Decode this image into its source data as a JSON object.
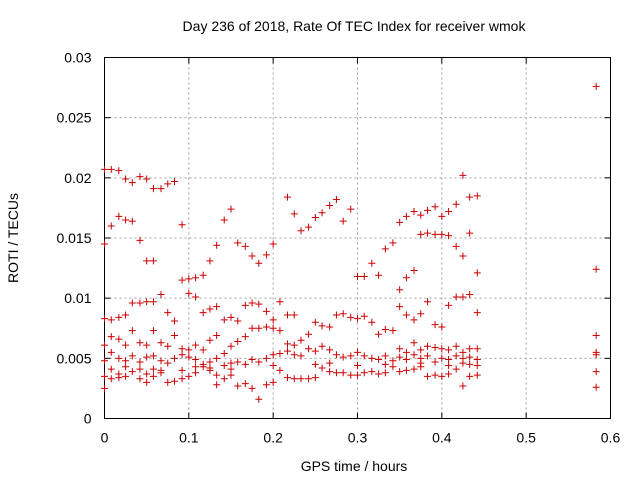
{
  "chart_data": {
    "type": "scatter",
    "title": "Day 236 of 2018, Rate Of TEC Index for receiver wmok",
    "xlabel": "GPS time / hours",
    "ylabel": "ROTI / TECUs",
    "xlim": [
      0,
      0.6
    ],
    "ylim": [
      0,
      0.03
    ],
    "xticks": [
      "0",
      "0.1",
      "0.2",
      "0.3",
      "0.4",
      "0.5",
      "0.6"
    ],
    "yticks": [
      "0",
      "0.005",
      "0.01",
      "0.015",
      "0.02",
      "0.025",
      "0.03"
    ],
    "grid": true,
    "marker": "plus",
    "color": "#cc0000",
    "series": [
      {
        "points": [
          [
            0.0,
            0.0207
          ],
          [
            0.008,
            0.0207
          ],
          [
            0.017,
            0.0206
          ],
          [
            0.025,
            0.0199
          ],
          [
            0.033,
            0.0196
          ],
          [
            0.042,
            0.0201
          ],
          [
            0.05,
            0.0199
          ],
          [
            0.058,
            0.0191
          ],
          [
            0.067,
            0.0191
          ],
          [
            0.075,
            0.0195
          ],
          [
            0.083,
            0.0197
          ],
          [
            0.0,
            0.0145
          ],
          [
            0.008,
            0.016
          ],
          [
            0.017,
            0.0168
          ],
          [
            0.025,
            0.0165
          ],
          [
            0.033,
            0.0164
          ],
          [
            0.042,
            0.0148
          ],
          [
            0.05,
            0.0131
          ],
          [
            0.058,
            0.0131
          ],
          [
            0.092,
            0.0161
          ],
          [
            0.092,
            0.0115
          ],
          [
            0.1,
            0.0116
          ],
          [
            0.108,
            0.0117
          ],
          [
            0.117,
            0.0119
          ],
          [
            0.125,
            0.0131
          ],
          [
            0.133,
            0.0144
          ],
          [
            0.142,
            0.0165
          ],
          [
            0.15,
            0.0174
          ],
          [
            0.158,
            0.0146
          ],
          [
            0.167,
            0.0143
          ],
          [
            0.175,
            0.0135
          ],
          [
            0.183,
            0.0129
          ],
          [
            0.192,
            0.0136
          ],
          [
            0.2,
            0.0145
          ],
          [
            0.217,
            0.0184
          ],
          [
            0.225,
            0.017
          ],
          [
            0.233,
            0.0156
          ],
          [
            0.242,
            0.0159
          ],
          [
            0.25,
            0.0167
          ],
          [
            0.258,
            0.0171
          ],
          [
            0.267,
            0.0177
          ],
          [
            0.275,
            0.0182
          ],
          [
            0.283,
            0.0164
          ],
          [
            0.292,
            0.0174
          ],
          [
            0.3,
            0.0118
          ],
          [
            0.308,
            0.0118
          ],
          [
            0.317,
            0.0129
          ],
          [
            0.325,
            0.0119
          ],
          [
            0.333,
            0.0141
          ],
          [
            0.342,
            0.0146
          ],
          [
            0.35,
            0.0163
          ],
          [
            0.358,
            0.0168
          ],
          [
            0.367,
            0.0172
          ],
          [
            0.375,
            0.0169
          ],
          [
            0.383,
            0.0173
          ],
          [
            0.392,
            0.0176
          ],
          [
            0.4,
            0.0168
          ],
          [
            0.408,
            0.0172
          ],
          [
            0.417,
            0.0178
          ],
          [
            0.425,
            0.0202
          ],
          [
            0.433,
            0.0184
          ],
          [
            0.442,
            0.0185
          ],
          [
            0.35,
            0.0107
          ],
          [
            0.358,
            0.0117
          ],
          [
            0.367,
            0.0123
          ],
          [
            0.375,
            0.0153
          ],
          [
            0.383,
            0.0154
          ],
          [
            0.392,
            0.0153
          ],
          [
            0.4,
            0.0153
          ],
          [
            0.408,
            0.0152
          ],
          [
            0.417,
            0.0143
          ],
          [
            0.425,
            0.0135
          ],
          [
            0.433,
            0.0154
          ],
          [
            0.442,
            0.0121
          ],
          [
            0.0,
            0.0083
          ],
          [
            0.008,
            0.0082
          ],
          [
            0.017,
            0.0084
          ],
          [
            0.025,
            0.0086
          ],
          [
            0.033,
            0.0096
          ],
          [
            0.042,
            0.0096
          ],
          [
            0.05,
            0.0097
          ],
          [
            0.058,
            0.0097
          ],
          [
            0.067,
            0.0103
          ],
          [
            0.075,
            0.0088
          ],
          [
            0.083,
            0.0081
          ],
          [
            0.1,
            0.0104
          ],
          [
            0.108,
            0.0101
          ],
          [
            0.117,
            0.0088
          ],
          [
            0.125,
            0.0091
          ],
          [
            0.133,
            0.0093
          ],
          [
            0.142,
            0.0082
          ],
          [
            0.15,
            0.0084
          ],
          [
            0.158,
            0.0081
          ],
          [
            0.167,
            0.0094
          ],
          [
            0.175,
            0.0096
          ],
          [
            0.183,
            0.0095
          ],
          [
            0.192,
            0.0089
          ],
          [
            0.2,
            0.0082
          ],
          [
            0.208,
            0.0097
          ],
          [
            0.217,
            0.0086
          ],
          [
            0.225,
            0.0086
          ],
          [
            0.35,
            0.0093
          ],
          [
            0.358,
            0.0086
          ],
          [
            0.367,
            0.0082
          ],
          [
            0.375,
            0.0087
          ],
          [
            0.383,
            0.0097
          ],
          [
            0.392,
            0.0078
          ],
          [
            0.4,
            0.0076
          ],
          [
            0.408,
            0.0094
          ],
          [
            0.417,
            0.0101
          ],
          [
            0.425,
            0.0101
          ],
          [
            0.433,
            0.0103
          ],
          [
            0.442,
            0.0088
          ],
          [
            0.0,
            0.0061
          ],
          [
            0.008,
            0.0068
          ],
          [
            0.017,
            0.0066
          ],
          [
            0.025,
            0.0061
          ],
          [
            0.033,
            0.0073
          ],
          [
            0.042,
            0.0063
          ],
          [
            0.05,
            0.0061
          ],
          [
            0.058,
            0.0073
          ],
          [
            0.067,
            0.0063
          ],
          [
            0.075,
            0.006
          ],
          [
            0.083,
            0.0069
          ],
          [
            0.092,
            0.0058
          ],
          [
            0.1,
            0.0057
          ],
          [
            0.108,
            0.0061
          ],
          [
            0.117,
            0.0057
          ],
          [
            0.125,
            0.0065
          ],
          [
            0.133,
            0.0069
          ],
          [
            0.142,
            0.0054
          ],
          [
            0.15,
            0.006
          ],
          [
            0.158,
            0.0064
          ],
          [
            0.167,
            0.0068
          ],
          [
            0.175,
            0.0075
          ],
          [
            0.183,
            0.0075
          ],
          [
            0.192,
            0.0076
          ],
          [
            0.2,
            0.0075
          ],
          [
            0.208,
            0.0073
          ],
          [
            0.217,
            0.0062
          ],
          [
            0.225,
            0.0061
          ],
          [
            0.233,
            0.0065
          ],
          [
            0.242,
            0.007
          ],
          [
            0.25,
            0.008
          ],
          [
            0.258,
            0.0077
          ],
          [
            0.267,
            0.0076
          ],
          [
            0.275,
            0.0086
          ],
          [
            0.283,
            0.0087
          ],
          [
            0.292,
            0.0084
          ],
          [
            0.3,
            0.0083
          ],
          [
            0.308,
            0.0085
          ],
          [
            0.317,
            0.008
          ],
          [
            0.325,
            0.007
          ],
          [
            0.333,
            0.0074
          ],
          [
            0.342,
            0.0073
          ],
          [
            0.35,
            0.0058
          ],
          [
            0.358,
            0.0055
          ],
          [
            0.367,
            0.0063
          ],
          [
            0.375,
            0.0057
          ],
          [
            0.383,
            0.006
          ],
          [
            0.392,
            0.0059
          ],
          [
            0.4,
            0.0058
          ],
          [
            0.408,
            0.0057
          ],
          [
            0.417,
            0.006
          ],
          [
            0.425,
            0.0055
          ],
          [
            0.433,
            0.0058
          ],
          [
            0.442,
            0.0058
          ],
          [
            0.0,
            0.0048
          ],
          [
            0.008,
            0.0055
          ],
          [
            0.017,
            0.005
          ],
          [
            0.025,
            0.0048
          ],
          [
            0.033,
            0.0052
          ],
          [
            0.042,
            0.0047
          ],
          [
            0.05,
            0.0051
          ],
          [
            0.058,
            0.0052
          ],
          [
            0.067,
            0.0048
          ],
          [
            0.075,
            0.0046
          ],
          [
            0.083,
            0.005
          ],
          [
            0.092,
            0.0053
          ],
          [
            0.1,
            0.0051
          ],
          [
            0.108,
            0.0049
          ],
          [
            0.117,
            0.0045
          ],
          [
            0.125,
            0.0047
          ],
          [
            0.133,
            0.005
          ],
          [
            0.142,
            0.0044
          ],
          [
            0.15,
            0.0046
          ],
          [
            0.158,
            0.0047
          ],
          [
            0.167,
            0.0045
          ],
          [
            0.175,
            0.0049
          ],
          [
            0.183,
            0.0047
          ],
          [
            0.192,
            0.005
          ],
          [
            0.2,
            0.0053
          ],
          [
            0.208,
            0.0054
          ],
          [
            0.217,
            0.0056
          ],
          [
            0.225,
            0.0053
          ],
          [
            0.233,
            0.0052
          ],
          [
            0.242,
            0.0058
          ],
          [
            0.25,
            0.0056
          ],
          [
            0.258,
            0.006
          ],
          [
            0.267,
            0.0057
          ],
          [
            0.275,
            0.0053
          ],
          [
            0.283,
            0.0051
          ],
          [
            0.292,
            0.0052
          ],
          [
            0.3,
            0.0055
          ],
          [
            0.308,
            0.0052
          ],
          [
            0.317,
            0.005
          ],
          [
            0.325,
            0.0049
          ],
          [
            0.333,
            0.0052
          ],
          [
            0.342,
            0.0048
          ],
          [
            0.35,
            0.0051
          ],
          [
            0.358,
            0.0049
          ],
          [
            0.367,
            0.0053
          ],
          [
            0.375,
            0.005
          ],
          [
            0.383,
            0.0052
          ],
          [
            0.392,
            0.0047
          ],
          [
            0.4,
            0.005
          ],
          [
            0.408,
            0.0049
          ],
          [
            0.417,
            0.0052
          ],
          [
            0.425,
            0.005
          ],
          [
            0.433,
            0.0051
          ],
          [
            0.442,
            0.0049
          ],
          [
            0.0,
            0.0035
          ],
          [
            0.008,
            0.0033
          ],
          [
            0.017,
            0.0037
          ],
          [
            0.025,
            0.0035
          ],
          [
            0.033,
            0.0039
          ],
          [
            0.042,
            0.0033
          ],
          [
            0.05,
            0.0037
          ],
          [
            0.058,
            0.0035
          ],
          [
            0.067,
            0.0038
          ],
          [
            0.075,
            0.003
          ],
          [
            0.083,
            0.0031
          ],
          [
            0.092,
            0.0033
          ],
          [
            0.1,
            0.0035
          ],
          [
            0.108,
            0.0038
          ],
          [
            0.117,
            0.0043
          ],
          [
            0.125,
            0.004
          ],
          [
            0.133,
            0.0036
          ],
          [
            0.142,
            0.0033
          ],
          [
            0.15,
            0.0036
          ],
          [
            0.158,
            0.0027
          ],
          [
            0.167,
            0.0029
          ],
          [
            0.175,
            0.0025
          ],
          [
            0.183,
            0.0016
          ],
          [
            0.192,
            0.0028
          ],
          [
            0.2,
            0.003
          ],
          [
            0.208,
            0.004
          ],
          [
            0.217,
            0.0034
          ],
          [
            0.225,
            0.0033
          ],
          [
            0.233,
            0.0033
          ],
          [
            0.242,
            0.0033
          ],
          [
            0.25,
            0.0034
          ],
          [
            0.258,
            0.0042
          ],
          [
            0.267,
            0.0039
          ],
          [
            0.275,
            0.0038
          ],
          [
            0.283,
            0.0038
          ],
          [
            0.292,
            0.0036
          ],
          [
            0.3,
            0.0036
          ],
          [
            0.308,
            0.0038
          ],
          [
            0.317,
            0.0039
          ],
          [
            0.325,
            0.0037
          ],
          [
            0.333,
            0.0038
          ],
          [
            0.342,
            0.0043
          ],
          [
            0.35,
            0.0039
          ],
          [
            0.358,
            0.004
          ],
          [
            0.367,
            0.0041
          ],
          [
            0.375,
            0.0043
          ],
          [
            0.383,
            0.0035
          ],
          [
            0.392,
            0.0036
          ],
          [
            0.4,
            0.0035
          ],
          [
            0.408,
            0.0037
          ],
          [
            0.417,
            0.0041
          ],
          [
            0.425,
            0.0027
          ],
          [
            0.433,
            0.0035
          ],
          [
            0.442,
            0.0036
          ],
          [
            0.0,
            0.0025
          ],
          [
            0.008,
            0.0041
          ],
          [
            0.017,
            0.0034
          ],
          [
            0.025,
            0.0043
          ],
          [
            0.042,
            0.0041
          ],
          [
            0.05,
            0.003
          ],
          [
            0.058,
            0.0041
          ],
          [
            0.067,
            0.004
          ],
          [
            0.092,
            0.004
          ],
          [
            0.108,
            0.0043
          ],
          [
            0.125,
            0.0042
          ],
          [
            0.133,
            0.0028
          ],
          [
            0.15,
            0.0041
          ],
          [
            0.2,
            0.0044
          ],
          [
            0.25,
            0.0045
          ],
          [
            0.267,
            0.0046
          ],
          [
            0.3,
            0.0044
          ],
          [
            0.333,
            0.0045
          ],
          [
            0.375,
            0.0046
          ],
          [
            0.408,
            0.0044
          ],
          [
            0.425,
            0.0046
          ],
          [
            0.433,
            0.0045
          ],
          [
            0.442,
            0.0044
          ],
          [
            0.583,
            0.0276
          ],
          [
            0.583,
            0.0124
          ],
          [
            0.583,
            0.0069
          ],
          [
            0.583,
            0.0055
          ],
          [
            0.583,
            0.0053
          ],
          [
            0.583,
            0.0039
          ],
          [
            0.583,
            0.0026
          ]
        ]
      }
    ]
  }
}
